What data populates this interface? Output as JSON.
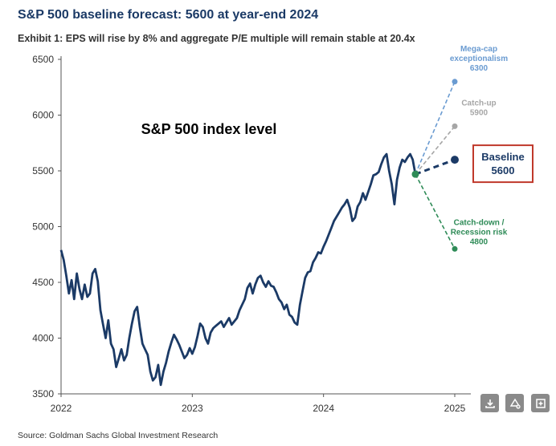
{
  "title": "S&P 500 baseline forecast: 5600 at year-end 2024",
  "subtitle": "Exhibit 1: EPS will rise by 8% and aggregate P/E multiple will remain stable at 20.4x",
  "source": "Source: Goldman Sachs Global Investment Research",
  "chart_data": {
    "type": "line",
    "inner_label": "S&P 500 index level",
    "ylim": [
      3500,
      6500
    ],
    "yticks": [
      3500,
      4000,
      4500,
      5000,
      5500,
      6000,
      6500
    ],
    "xlim": [
      2022,
      2025
    ],
    "xticks": [
      2022,
      2023,
      2024,
      2025
    ],
    "grid": false,
    "series": [
      {
        "color": "#1b3a66",
        "x": [
          2022.0,
          2022.02,
          2022.04,
          2022.06,
          2022.08,
          2022.1,
          2022.12,
          2022.14,
          2022.16,
          2022.18,
          2022.2,
          2022.22,
          2022.24,
          2022.26,
          2022.28,
          2022.3,
          2022.32,
          2022.34,
          2022.36,
          2022.38,
          2022.4,
          2022.42,
          2022.44,
          2022.46,
          2022.48,
          2022.5,
          2022.52,
          2022.54,
          2022.56,
          2022.58,
          2022.6,
          2022.62,
          2022.64,
          2022.66,
          2022.68,
          2022.7,
          2022.72,
          2022.74,
          2022.76,
          2022.78,
          2022.8,
          2022.82,
          2022.84,
          2022.86,
          2022.88,
          2022.9,
          2022.92,
          2022.94,
          2022.96,
          2022.98,
          2023.0,
          2023.02,
          2023.04,
          2023.06,
          2023.08,
          2023.1,
          2023.12,
          2023.14,
          2023.16,
          2023.18,
          2023.2,
          2023.22,
          2023.24,
          2023.26,
          2023.28,
          2023.3,
          2023.32,
          2023.34,
          2023.36,
          2023.38,
          2023.4,
          2023.42,
          2023.44,
          2023.46,
          2023.48,
          2023.5,
          2023.52,
          2023.54,
          2023.56,
          2023.58,
          2023.6,
          2023.62,
          2023.64,
          2023.66,
          2023.68,
          2023.7,
          2023.72,
          2023.74,
          2023.76,
          2023.78,
          2023.8,
          2023.82,
          2023.84,
          2023.86,
          2023.88,
          2023.9,
          2023.92,
          2023.94,
          2023.96,
          2023.98,
          2024.0,
          2024.02,
          2024.04,
          2024.06,
          2024.08,
          2024.1,
          2024.12,
          2024.14,
          2024.16,
          2024.18,
          2024.2,
          2024.22,
          2024.24,
          2024.26,
          2024.28,
          2024.3,
          2024.32,
          2024.34,
          2024.36,
          2024.38,
          2024.4,
          2024.42,
          2024.44,
          2024.46,
          2024.48,
          2024.5,
          2024.52,
          2024.54,
          2024.56,
          2024.58,
          2024.6,
          2024.62,
          2024.64,
          2024.66,
          2024.68,
          2024.7
        ],
        "values": [
          4790,
          4700,
          4560,
          4400,
          4520,
          4350,
          4580,
          4440,
          4350,
          4480,
          4370,
          4400,
          4580,
          4620,
          4510,
          4250,
          4120,
          4000,
          4160,
          3950,
          3900,
          3740,
          3820,
          3900,
          3800,
          3850,
          4000,
          4130,
          4240,
          4280,
          4100,
          3950,
          3900,
          3850,
          3700,
          3620,
          3650,
          3760,
          3580,
          3700,
          3780,
          3880,
          3960,
          4030,
          3990,
          3940,
          3880,
          3820,
          3850,
          3910,
          3860,
          3920,
          4020,
          4130,
          4100,
          4000,
          3950,
          4050,
          4090,
          4110,
          4130,
          4150,
          4100,
          4140,
          4180,
          4120,
          4150,
          4180,
          4250,
          4300,
          4350,
          4450,
          4490,
          4400,
          4480,
          4540,
          4560,
          4500,
          4460,
          4510,
          4470,
          4460,
          4410,
          4350,
          4320,
          4260,
          4300,
          4210,
          4190,
          4140,
          4120,
          4300,
          4420,
          4540,
          4590,
          4600,
          4680,
          4720,
          4770,
          4760,
          4820,
          4870,
          4930,
          4990,
          5050,
          5090,
          5130,
          5170,
          5200,
          5240,
          5170,
          5050,
          5080,
          5180,
          5220,
          5300,
          5240,
          5310,
          5380,
          5460,
          5470,
          5490,
          5560,
          5620,
          5650,
          5500,
          5380,
          5200,
          5420,
          5530,
          5600,
          5580,
          5620,
          5650,
          5600,
          5470
        ]
      }
    ],
    "forecast": {
      "start": {
        "x": 2024.7,
        "y": 5470
      },
      "end_x": 2025,
      "scenarios": [
        {
          "line1": "Mega-cap",
          "line2": "exceptionalism",
          "value": 6300,
          "color": "#6a9bd1",
          "style": "dashed"
        },
        {
          "line1": "Catch-up",
          "line2": "",
          "value": 5900,
          "color": "#a6a6a6",
          "style": "dashed"
        },
        {
          "line1": "Baseline",
          "line2": "",
          "value": 5600,
          "color": "#1b3a66",
          "style": "dashed",
          "highlight": true,
          "box_color": "#c0392b"
        },
        {
          "line1": "Catch-down /",
          "line2": "Recession risk",
          "value": 4800,
          "color": "#2e8b57",
          "style": "dashed"
        }
      ]
    }
  },
  "toolbar": {
    "icons": [
      "download-icon",
      "share-icon",
      "expand-icon"
    ]
  }
}
